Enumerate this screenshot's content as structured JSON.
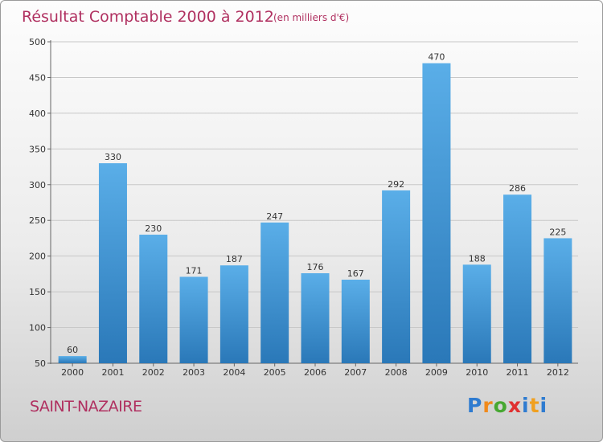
{
  "chart_data": {
    "type": "bar",
    "title": "Résultat Comptable 2000 à 2012",
    "subtitle": "(en milliers d'€)",
    "categories": [
      "2000",
      "2001",
      "2002",
      "2003",
      "2004",
      "2005",
      "2006",
      "2007",
      "2008",
      "2009",
      "2010",
      "2011",
      "2012"
    ],
    "values": [
      60,
      330,
      230,
      171,
      187,
      247,
      176,
      167,
      292,
      470,
      188,
      286,
      225
    ],
    "ylim": [
      50,
      500
    ],
    "yticks": [
      50,
      100,
      150,
      200,
      250,
      300,
      350,
      400,
      450,
      500
    ],
    "grid": true,
    "xlabel": "",
    "ylabel": ""
  },
  "location": "SAINT-NAZAIRE",
  "logo": {
    "letters": [
      "P",
      "r",
      "o",
      "x",
      "i",
      "t",
      "i"
    ],
    "colors": [
      "#2e7bd0",
      "#f08a1c",
      "#47a832",
      "#e03030",
      "#2e7bd0",
      "#f0a020",
      "#2e7bd0"
    ]
  },
  "colors": {
    "bar_top": "#5aaee8",
    "bar_bottom": "#2a78b8",
    "accent": "#b03060"
  }
}
